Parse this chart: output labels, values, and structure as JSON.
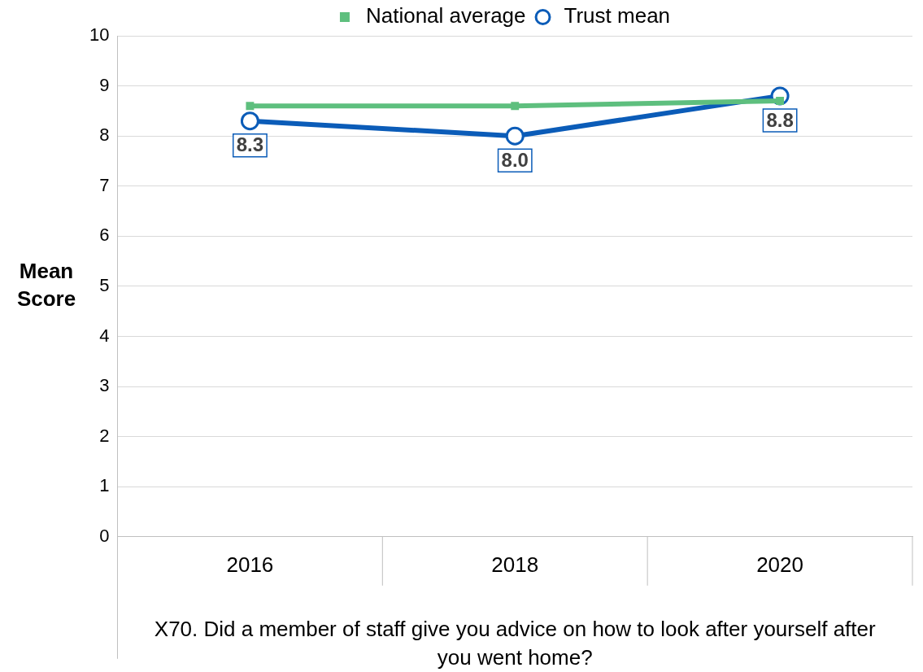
{
  "chart_data": {
    "type": "line",
    "xlabel": "X70. Did a member of staff give you advice on how to look after yourself after you went home?",
    "ylabel": "Mean Score",
    "categories": [
      "2016",
      "2018",
      "2020"
    ],
    "series": [
      {
        "name": "Trust mean",
        "color": "#0b5cb8",
        "values": [
          8.3,
          8.0,
          8.8
        ],
        "marker": "circle",
        "value_labels": [
          "8.3",
          "8.0",
          "8.8"
        ]
      },
      {
        "name": "National average",
        "color": "#5ebf7e",
        "values": [
          8.6,
          8.6,
          8.7
        ],
        "marker": "square"
      }
    ],
    "ylim": [
      0,
      10
    ],
    "yticks": [
      0,
      1,
      2,
      3,
      4,
      5,
      6,
      7,
      8,
      9,
      10
    ],
    "grid": "y",
    "legend": "top"
  }
}
